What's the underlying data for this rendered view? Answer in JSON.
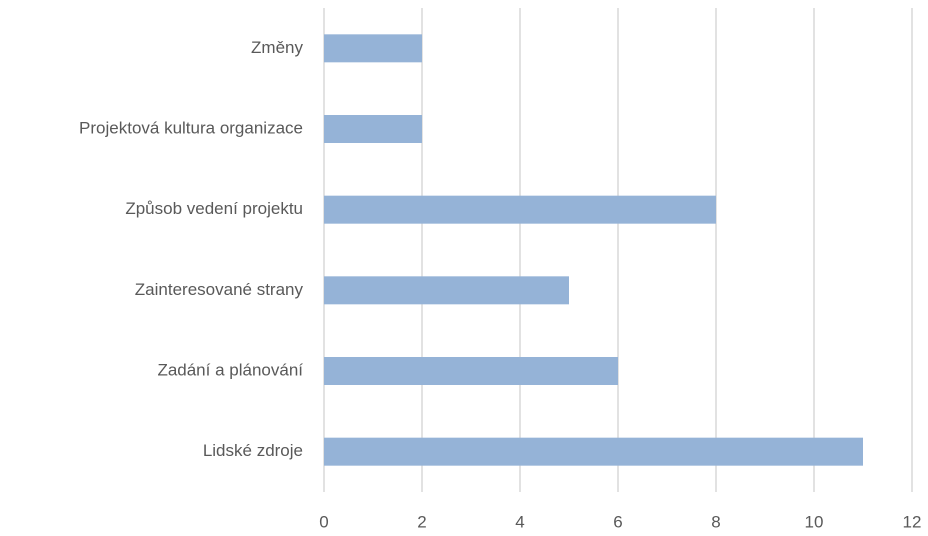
{
  "chart_data": {
    "type": "hbar",
    "categories": [
      "Změny",
      "Projektová kultura organizace",
      "Způsob vedení projektu",
      "Zainteresované strany",
      "Zadání a plánování",
      "Lidské zdroje"
    ],
    "values": [
      2,
      2,
      8,
      5,
      6,
      11
    ],
    "color": "#95b3d7",
    "xlim": [
      0,
      12
    ],
    "xticks": [
      0,
      2,
      4,
      6,
      8,
      10,
      12
    ],
    "grid": true
  }
}
